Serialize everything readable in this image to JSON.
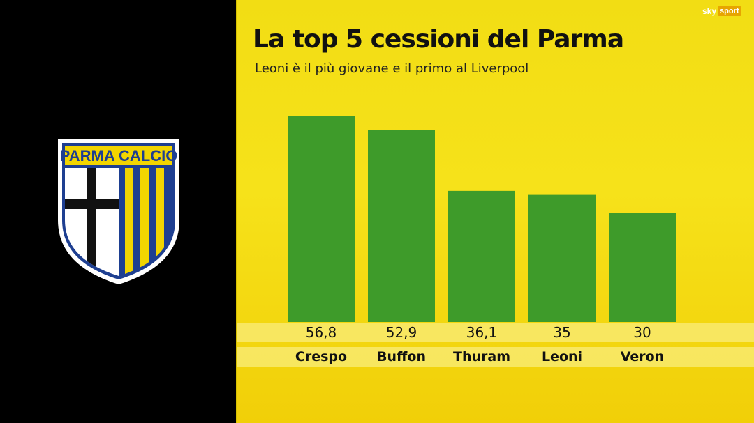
{
  "header": {
    "title": "La top 5 cessioni del Parma",
    "subtitle": "Leoni è il più giovane e il primo al Liverpool"
  },
  "crest": {
    "text": "PARMA CALCIO"
  },
  "broadcaster": {
    "sky": "sky",
    "sport": "sport"
  },
  "colors": {
    "bar": "#3e9b2a",
    "background": "#f4dc14",
    "crest_blue": "#1e3f91",
    "crest_yellow": "#f2d500"
  },
  "chart_data": {
    "type": "bar",
    "categories": [
      "Crespo",
      "Buffon",
      "Thuram",
      "Leoni",
      "Veron"
    ],
    "values": [
      56.8,
      52.9,
      36.1,
      35,
      30
    ],
    "value_labels": [
      "56,8",
      "52,9",
      "36,1",
      "35",
      "30"
    ],
    "title": "La top 5 cessioni del Parma",
    "subtitle": "Leoni è il più giovane e il primo al Liverpool",
    "xlabel": "",
    "ylabel": "",
    "grid": false
  }
}
